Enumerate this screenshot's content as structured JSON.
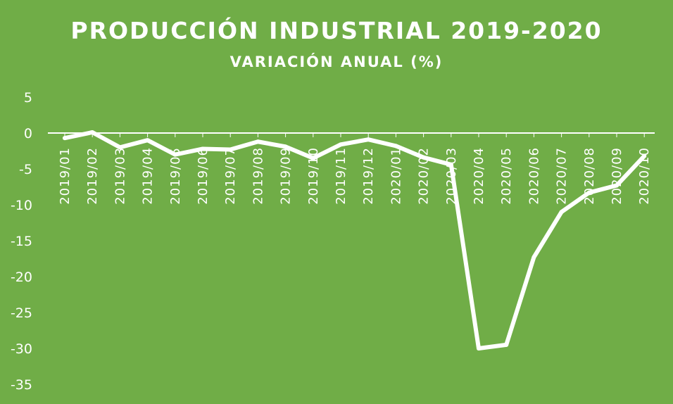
{
  "chart_data": {
    "type": "line",
    "title": "PRODUCCIÓN INDUSTRIAL 2019-2020",
    "subtitle": "VARIACIÓN ANUAL (%)",
    "xlabel": "",
    "ylabel": "",
    "categories": [
      "2019/01",
      "2019/02",
      "2019/03",
      "2019/04",
      "2019/05",
      "2019/06",
      "2019/07",
      "2019/08",
      "2019/09",
      "2019/10",
      "2019/11",
      "2019/12",
      "2020/01",
      "2020/02",
      "2020/03",
      "2020/04",
      "2020/05",
      "2020/06",
      "2020/07",
      "2020/08",
      "2020/09",
      "2020/10"
    ],
    "series": [
      {
        "values": [
          -0.7,
          0.1,
          -2.0,
          -1.0,
          -3.0,
          -2.2,
          -2.3,
          -1.2,
          -1.9,
          -3.5,
          -1.6,
          -0.9,
          -1.8,
          -3.4,
          -4.4,
          -30.0,
          -29.5,
          -17.3,
          -11.0,
          -8.3,
          -7.3,
          -3.2
        ]
      }
    ],
    "ylim": [
      -35,
      5
    ],
    "yticks": [
      5,
      0,
      -5,
      -10,
      -15,
      -20,
      -25,
      -30,
      -35
    ],
    "grid": false,
    "legend": "none",
    "colors": {
      "background": "#70AD47",
      "line": "#FFFFFF",
      "axis": "#FFFFFF"
    }
  }
}
